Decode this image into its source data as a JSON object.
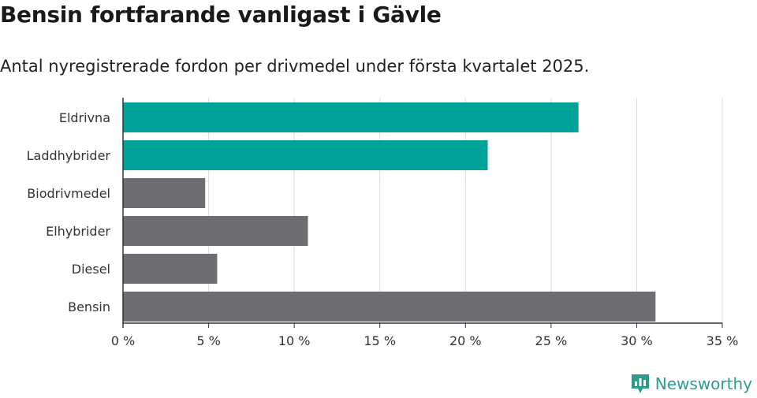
{
  "title": "Bensin fortfarande vanligast i Gävle",
  "subtitle": "Antal nyregistrerade fordon per drivmedel under första kvartalet 2025.",
  "brand": "Newsworthy",
  "colors": {
    "highlight": "#00a398",
    "default": "#6d6d72",
    "grid": "#dddddd",
    "axis": "#333333"
  },
  "chart_data": {
    "type": "bar",
    "orientation": "horizontal",
    "categories": [
      "Eldrivna",
      "Laddhybrider",
      "Biodrivmedel",
      "Elhybrider",
      "Diesel",
      "Bensin"
    ],
    "values": [
      26.6,
      21.3,
      4.8,
      10.8,
      5.5,
      31.1
    ],
    "highlighted": [
      true,
      true,
      false,
      false,
      false,
      false
    ],
    "xlim": [
      0,
      35
    ],
    "xticks": [
      0,
      5,
      10,
      15,
      20,
      25,
      30,
      35
    ],
    "xtick_labels": [
      "0 %",
      "5 %",
      "10 %",
      "15 %",
      "20 %",
      "25 %",
      "30 %",
      "35 %"
    ],
    "unit": "%",
    "grid": true
  }
}
